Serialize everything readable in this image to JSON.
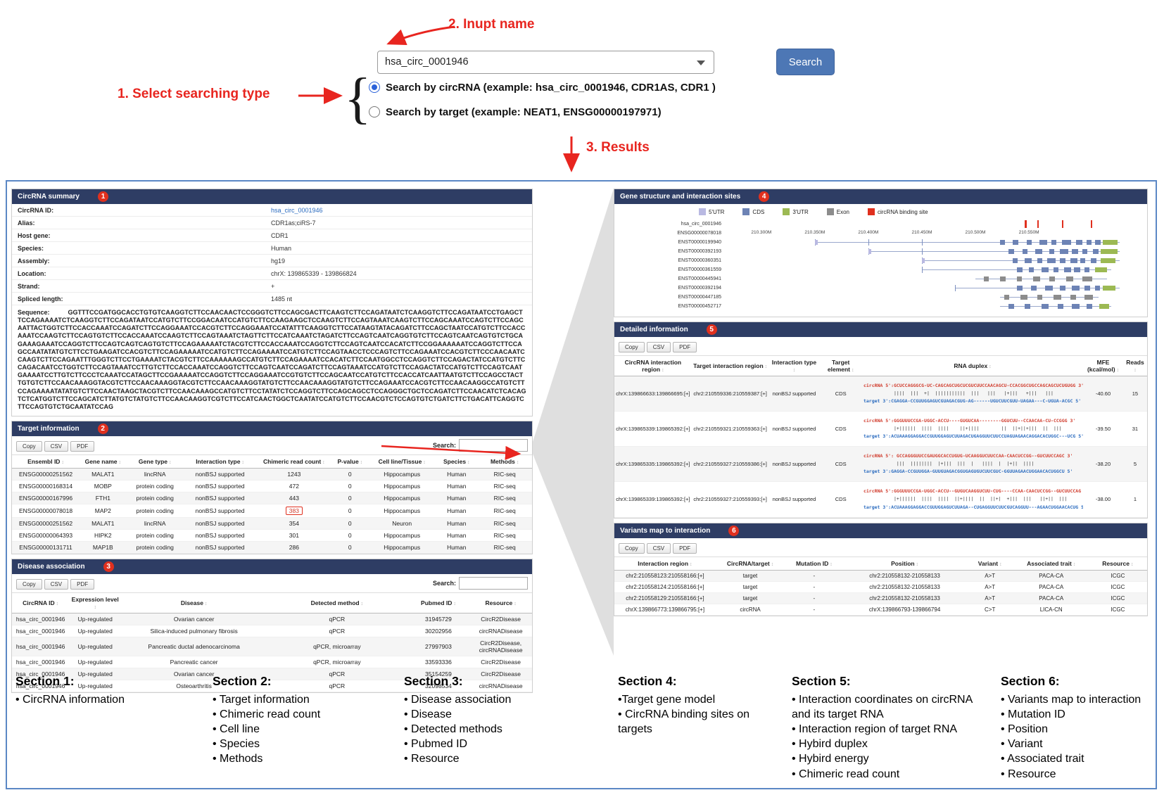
{
  "colors": {
    "header_bar": "#2e3d64",
    "badge": "#e0301e",
    "link": "#2a6bbf",
    "red_text": "#d03a2b",
    "search_button": "#4d77b5",
    "annotation": "#e8251f"
  },
  "annotations": {
    "step1": "1. Select searching type",
    "step2": "2. Inupt name",
    "step3": "3. Results"
  },
  "search": {
    "value": "hsa_circ_0001946",
    "button": "Search",
    "radio_circrna": "Search by circRNA (example: hsa_circ_0001946, CDR1AS, CDR1 )",
    "radio_target": "Search by target (example: NEAT1, ENSG00000197971)"
  },
  "summary": {
    "title": "CircRNA summary",
    "badge": "1",
    "rows": [
      {
        "label": "CircRNA ID:",
        "value": "hsa_circ_0001946",
        "link": true
      },
      {
        "label": "Alias:",
        "value": "CDR1as;ciRS-7"
      },
      {
        "label": "Host gene:",
        "value": "CDR1"
      },
      {
        "label": "Species:",
        "value": "Human"
      },
      {
        "label": "Assembly:",
        "value": "hg19"
      },
      {
        "label": "Location:",
        "value": "chrX: 139865339 - 139866824"
      },
      {
        "label": "Strand:",
        "value": "+"
      },
      {
        "label": "Spliced length:",
        "value": "1485 nt"
      }
    ],
    "sequence_label": "Sequence:",
    "sequence": "GGTTTCCGATGGCACCTGTGTCAAGGTCTTCCAACAACTCCGGGTCTTCCAGCGACTTCAAGTCTTCCAGATAATCTCAAGGTCTTCCAGATAATCCTGAGCTTCCAGAAAATCTCAAGGTCTTCCAGATAATCCATGTCTTCCGGACAATCCATGTCTTCCAAGAAGCTCCAAGTCTTCCAGTAAATCAAGTCTTCCAGCAAATCCAGTCTTCCAGCAATTACTGGTCTTCCACCAAATCCAGATCTTCCAGGAAATCCACGTCTTCCAGGAAATCCATATTTCAAGGTCTTCCATAAGTATACAGATCTTCCAGCTAATCCATGTCTTCCACCAAATCCAAGTCTTCCAGTGTCTTCCACCAAATCCAAGTCTTCCAGTAAATCTAGTTCTTCCATCAAATCTAGATCTTCCAGTCAATCAGGTGTCTTCCAGTCAATCAGTGTCTGCAGAAAGAAATCCAGGTCTTCCAGTCAGTCAGTGTCTTCCAGAAAAATCTACGTCTTCCACCAAATCCAGGTCTTCCAGTCAATCCACATCTTCCGGAAAAAATCCAGGTCTTCCAGCCAATATATGTCTTCCTGAAGATCCACGTCTTCCAGAAAAATCCATGTCTTCCAGAAAATCCATGTCTTCCAGTAACCTCCCAGTCTTCCAGAAATCCACGTCTTCCCAACAATCCAAGTCTTCCAGAATTTGGGTCTTCCTGAAAATCTACGTCTTCCAAAAAAGCCATGTCTTCCAGAAAATCCACATCTTCCAATGGCCTCCAGGTCTTCCAGACTATCCATGTCTTCCAGACAATCCTGGTCTTCCAGTAAATCCTTGTCTTCCACCAAATCCAGGTCTTCCAGTCAATCCAGATCTTCCAGTAAATCCATGTCTTCCAGACTATCCATGTCTTCCAGTCAATGAAAATCCTTGTCTTCCCTCAAATCCATAGCTTCCGAAAAATCCAGGTCTTCCAGGAAATCCGTGTCTTCCAGCAATCCATGTCTTCCACCATCAATTAATGTCTTCCAGCCTACTTGTGTCTTCCAACAAAGGTACGTCTTCCAACAAAGGTACGTCTTCCAACAAAGGTATGTCTTCCAACAAAGGTATGTCTTCCAGAAATCCACGTCTTCCAACAAGGCCATGTCTTCCAGAAAATATATGTCTTCCAACTAAGCTACGTCTTCCAACAAAGCCATGTCTTCCTATATCTCCAGGTCTTCCAGCAGCCTCCAGGGCTGCTCCAGATCTTCCAACATCTCACAGTCTCATGGTCTTCCAGCATCTTATGTCTATGTCTTCCAACAAGGTCGTCTTCCATCAACTGGCTCAATATCCATGTCTTCCAACGTCTCCAGTGTCTGATCTTCTGACATTCAGGTCTTCCAGTGTCTGCAATATCCAG"
  },
  "target_info": {
    "title": "Target information",
    "badge": "2",
    "buttons": [
      "Copy",
      "CSV",
      "PDF"
    ],
    "search_label": "Search:",
    "columns": [
      "Ensembl ID",
      "Gene name",
      "Gene type",
      "Interaction type",
      "Chimeric read count",
      "P-value",
      "Cell line/Tissue",
      "Species",
      "Methods"
    ],
    "rows": [
      [
        {
          "t": "ENSG00000251562",
          "c": "link"
        },
        "MALAT1",
        "lincRNA",
        "nonBSJ supported",
        {
          "t": "1243",
          "c": "red"
        },
        "0",
        "Hippocampus",
        "Human",
        "RIC-seq"
      ],
      [
        {
          "t": "ENSG00000168314",
          "c": "link"
        },
        "MOBP",
        "protein coding",
        "nonBSJ supported",
        {
          "t": "472",
          "c": "red"
        },
        "0",
        "Hippocampus",
        "Human",
        "RIC-seq"
      ],
      [
        {
          "t": "ENSG00000167996",
          "c": "link"
        },
        "FTH1",
        "protein coding",
        "nonBSJ supported",
        {
          "t": "443",
          "c": "red"
        },
        "0",
        "Hippocampus",
        "Human",
        "RIC-seq"
      ],
      [
        {
          "t": "ENSG00000078018",
          "c": "link"
        },
        "MAP2",
        "protein coding",
        "nonBSJ supported",
        {
          "t": "383",
          "c": "red boxed"
        },
        "0",
        "Hippocampus",
        "Human",
        "RIC-seq"
      ],
      [
        {
          "t": "ENSG00000251562",
          "c": "link"
        },
        "MALAT1",
        "lincRNA",
        "nonBSJ supported",
        {
          "t": "354",
          "c": "red"
        },
        "0",
        "Neuron",
        "Human",
        "RIC-seq"
      ],
      [
        {
          "t": "ENSG00000064393",
          "c": "link"
        },
        "HIPK2",
        "protein coding",
        "nonBSJ supported",
        {
          "t": "301",
          "c": "red"
        },
        "0",
        "Hippocampus",
        "Human",
        "RIC-seq"
      ],
      [
        {
          "t": "ENSG00000131711",
          "c": "link"
        },
        "MAP1B",
        "protein coding",
        "nonBSJ supported",
        {
          "t": "286",
          "c": "red"
        },
        "0",
        "Hippocampus",
        "Human",
        "RIC-seq"
      ]
    ]
  },
  "disease": {
    "title": "Disease association",
    "badge": "3",
    "buttons": [
      "Copy",
      "CSV",
      "PDF"
    ],
    "search_label": "Search:",
    "columns": [
      "CircRNA ID",
      "Expression level",
      "Disease",
      "Detected method",
      "Pubmed ID",
      "Resource"
    ],
    "rows": [
      [
        "hsa_circ_0001946",
        "Up-regulated",
        "Ovarian cancer",
        "qPCR",
        {
          "t": "31945729",
          "c": "link"
        },
        "CircR2Disease"
      ],
      [
        "hsa_circ_0001946",
        "Up-regulated",
        "Silica-induced pulmonary fibrosis",
        "qPCR",
        {
          "t": "30202956",
          "c": "link"
        },
        "circRNADisease"
      ],
      [
        "hsa_circ_0001946",
        "Up-regulated",
        "Pancreatic ductal adenocarcinoma",
        "qPCR, microarray",
        {
          "t": "27997903",
          "c": "link"
        },
        "CircR2Disease, circRNADisease"
      ],
      [
        "hsa_circ_0001946",
        "Up-regulated",
        "Pancreatic cancer",
        "qPCR, microarray",
        {
          "t": "33593336",
          "c": "link"
        },
        "CircR2Disease"
      ],
      [
        "hsa_circ_0001946",
        "Up-regulated",
        "Ovarian cancer",
        "qPCR",
        {
          "t": "35154259",
          "c": "link"
        },
        "CircR2Disease"
      ],
      [
        "hsa_circ_0001946",
        "Up-regulated",
        "Osteoarthritis",
        "qPCR",
        {
          "t": "32098534",
          "c": "link"
        },
        "circRNADisease"
      ]
    ]
  },
  "gene_structure": {
    "title": "Gene structure and interaction sites",
    "badge": "4",
    "legend": [
      {
        "key": "utr5",
        "label": "5'UTR",
        "color": "#b9b9e2"
      },
      {
        "key": "cds",
        "label": "CDS",
        "color": "#6d83b5"
      },
      {
        "key": "utr3",
        "label": "3'UTR",
        "color": "#9cb953"
      },
      {
        "key": "exon",
        "label": "Exon",
        "color": "#8c8c8c"
      },
      {
        "key": "bind",
        "label": "circRNA binding site",
        "color": "#e0301e"
      }
    ],
    "axis_ticks": [
      {
        "label": "210.300M",
        "x": 8
      },
      {
        "label": "210.350M",
        "x": 21
      },
      {
        "label": "210.400M",
        "x": 34
      },
      {
        "label": "210.450M",
        "x": 47
      },
      {
        "label": "210.500M",
        "x": 60
      },
      {
        "label": "210.550M",
        "x": 73
      }
    ],
    "tracks": [
      {
        "label": "hsa_circ_0001946",
        "marks": [
          72,
          75,
          81,
          88
        ]
      },
      {
        "label": "ENSG00000078018",
        "type": "axis"
      },
      {
        "label": "ENST00000199940",
        "line": [
          21,
          95
        ],
        "ticks": [
          21,
          34,
          47
        ],
        "exons": [
          [
            21,
            0.7,
            "utr5"
          ],
          [
            66,
            1.2,
            "cds"
          ],
          [
            69,
            1.5,
            "cds"
          ],
          [
            72.5,
            1.2,
            "cds"
          ],
          [
            75.5,
            2,
            "cds"
          ],
          [
            78.5,
            1.2,
            "cds"
          ],
          [
            81,
            2.2,
            "cds"
          ],
          [
            84.5,
            1.5,
            "cds"
          ],
          [
            87,
            1.2,
            "cds"
          ],
          [
            89,
            1.5,
            "cds"
          ],
          [
            91,
            3.5,
            "utr3"
          ]
        ]
      },
      {
        "label": "ENST00000392193",
        "line": [
          34,
          95
        ],
        "ticks": [
          34,
          47
        ],
        "exons": [
          [
            34,
            0.7,
            "utr5"
          ],
          [
            68,
            1.4,
            "cds"
          ],
          [
            71.5,
            1.2,
            "cds"
          ],
          [
            74.5,
            1.8,
            "cds"
          ],
          [
            78,
            1.2,
            "cds"
          ],
          [
            80.5,
            2,
            "cds"
          ],
          [
            83.5,
            1.4,
            "cds"
          ],
          [
            86,
            1.2,
            "cds"
          ],
          [
            88.5,
            1.4,
            "cds"
          ],
          [
            90.5,
            4,
            "utr3"
          ]
        ]
      },
      {
        "label": "ENST00000360351",
        "line": [
          47,
          95
        ],
        "ticks": [
          47
        ],
        "exons": [
          [
            47,
            0.7,
            "utr5"
          ],
          [
            69,
            1.2,
            "cds"
          ],
          [
            72,
            1.6,
            "cds"
          ],
          [
            75,
            1.2,
            "cds"
          ],
          [
            77.5,
            2,
            "cds"
          ],
          [
            80.5,
            1.4,
            "cds"
          ],
          [
            83,
            1.8,
            "cds"
          ],
          [
            85.5,
            1.2,
            "cds"
          ],
          [
            88,
            1.4,
            "cds"
          ],
          [
            90.5,
            3.5,
            "utr3"
          ]
        ]
      },
      {
        "label": "ENST00000361559",
        "line": [
          47,
          93
        ],
        "ticks": [
          47
        ],
        "exons": [
          [
            70,
            1.4,
            "cds"
          ],
          [
            73,
            1.2,
            "cds"
          ],
          [
            76,
            1.8,
            "cds"
          ],
          [
            79,
            1.2,
            "cds"
          ],
          [
            81.5,
            1.8,
            "cds"
          ],
          [
            84,
            1.4,
            "cds"
          ],
          [
            86.5,
            1.2,
            "cds"
          ],
          [
            89,
            3,
            "utr3"
          ]
        ]
      },
      {
        "label": "ENST00000445941",
        "line": [
          60,
          92
        ],
        "exons": [
          [
            62,
            1.2,
            "exon"
          ],
          [
            66,
            1.4,
            "exon"
          ],
          [
            70,
            1.2,
            "exon"
          ],
          [
            74,
            1.8,
            "exon"
          ],
          [
            78,
            1.4,
            "exon"
          ],
          [
            82,
            1.8,
            "exon"
          ],
          [
            86,
            2.4,
            "exon"
          ]
        ]
      },
      {
        "label": "ENST00000392194",
        "line": [
          55,
          95
        ],
        "ticks": [
          55
        ],
        "exons": [
          [
            70,
            1.4,
            "cds"
          ],
          [
            73.5,
            1.4,
            "cds"
          ],
          [
            77,
            1.8,
            "cds"
          ],
          [
            80.5,
            1.4,
            "cds"
          ],
          [
            83.5,
            1.8,
            "cds"
          ],
          [
            86.5,
            1.4,
            "cds"
          ],
          [
            89,
            1.2,
            "cds"
          ],
          [
            91,
            3,
            "utr3"
          ]
        ]
      },
      {
        "label": "ENST00000447185",
        "line": [
          66,
          90
        ],
        "exons": [
          [
            67,
            1.2,
            "exon"
          ],
          [
            71,
            1.6,
            "exon"
          ],
          [
            75,
            1.2,
            "exon"
          ],
          [
            79,
            1.8,
            "exon"
          ],
          [
            83,
            1.4,
            "exon"
          ],
          [
            86.5,
            2,
            "exon"
          ]
        ]
      },
      {
        "label": "ENST00000452717",
        "line": [
          66,
          93
        ],
        "exons": [
          [
            68,
            1.4,
            "cds"
          ],
          [
            72,
            1.4,
            "cds"
          ],
          [
            76,
            1.8,
            "cds"
          ],
          [
            80,
            1.4,
            "cds"
          ],
          [
            83.5,
            1.8,
            "cds"
          ],
          [
            87,
            1.4,
            "cds"
          ],
          [
            90,
            2.5,
            "utr3"
          ]
        ]
      }
    ]
  },
  "detailed": {
    "title": "Detailed information",
    "badge": "5",
    "buttons": [
      "Copy",
      "CSV",
      "PDF"
    ],
    "columns": [
      "CircRNA interaction region",
      "Target interaction region",
      "Interaction type",
      "Target element",
      "RNA duplex",
      "MFE (kcal/mol)",
      "Reads"
    ],
    "rows": [
      [
        "chrX:139866633:139866695:[+]",
        "chr2:210559336:210559387:[+]",
        "nonBSJ supported",
        "CDS",
        {
          "lines": [
            {
              "t": "circRNA 5':GCUCCAGGGCG-UC-CAGCAGCUGCUCGUCUUCCAACAGCU-CCACGGCUGCCAGCAGCUCUGUGG 3'",
              "c": "dx-red"
            },
            {
              "t": "           ||||  |||  +|  |||||||||||  |||   |||   |+|||   +|||   |||",
              "c": "dx-mid"
            },
            {
              "t": "target 3':CGAGGA-CCGUUGGAGUCGUAGACGUG-AG------UGUCUUCGUU-UAGAA---C-UGUA-ACGC 5'",
              "c": "dx-blue"
            }
          ]
        },
        "-40.60",
        "15"
      ],
      [
        "chrX:139865339:139865392:[+]",
        "chr2:210559321:210559363:[+]",
        "nonBSJ supported",
        "CDS",
        {
          "lines": [
            {
              "t": "circRNA 5':GGGUUUCCGA-UGGC-ACCU----GUGUCAA--------GGUCUU--CCAACAA-CU-CCGGG 3'",
              "c": "dx-red"
            },
            {
              "t": "           |+||||||  ||||  ||||    ||+||||        ||  ||+||+|||  ||  |||",
              "c": "dx-mid"
            },
            {
              "t": "target 3':ACUAAAGGAGGACCGUUGGAGUCUUAGACUGAGGUUCUUCCUAGUAGAACAGGACACUGGC---UCG 5'",
              "c": "dx-blue"
            }
          ]
        },
        "-39.50",
        "31"
      ],
      [
        "chrX:139865335:139865392:[+]",
        "chr2:210559327:210559386:[+]",
        "nonBSJ supported",
        "CDS",
        {
          "lines": [
            {
              "t": "circRNA 5': GCCAGGGUUCCGAUGGCACCUGUG-UCAAGGUCUUCCAA-CAACUCCGG--GUCUUCCAGC 3'",
              "c": "dx-red"
            },
            {
              "t": "            |||  ||||||||  |+|||  |||  |   ||||  |  |+||  ||||",
              "c": "dx-mid"
            },
            {
              "t": "target 3':GAGGA-CCGUUGGA-GUUGUAGACGGUGAGUGUCUUCGUC-GGUUAGAACUGGAACACUGGCU 5'",
              "c": "dx-blue"
            }
          ]
        },
        "-38.20",
        "5"
      ],
      [
        "chrX:139865339:139865392:[+]",
        "chr2:210559327:210559393:[+]",
        "nonBSJ supported",
        "CDS",
        {
          "lines": [
            {
              "t": "circRNA 5':GGGUUUCCGA-UGGC-ACCU--GUGUCAAGGUCUU-CUG----CCAA-CAACUCCGG--GUCUUCCAG 3'",
              "c": "dx-red"
            },
            {
              "t": "           |+||||||  ||||  ||||  ||+||||  ||  ||+|  +|||  |||   ||+||  |||",
              "c": "dx-mid"
            },
            {
              "t": "target 3':ACUAAAGGAGGACCGUUGGAGUCUUAGA--CUGAGGUUCUUCGUCAGGUU---AGAACUGGAACACUG 5'",
              "c": "dx-blue"
            }
          ]
        },
        "-38.00",
        "1"
      ]
    ]
  },
  "variants": {
    "title": "Variants map to interaction",
    "badge": "6",
    "buttons": [
      "Copy",
      "CSV",
      "PDF"
    ],
    "columns": [
      "Interaction region",
      "CircRNA/target",
      "Mutation ID",
      "Position",
      "Variant",
      "Associated trait",
      "Resource"
    ],
    "rows": [
      [
        "chr2:210558123:210558166:[+]",
        "target",
        "-",
        "chr2:210558132-210558133",
        "A>T",
        "PACA-CA",
        "ICGC"
      ],
      [
        "chr2:210558124:210558166:[+]",
        "target",
        "-",
        "chr2:210558132-210558133",
        "A>T",
        "PACA-CA",
        "ICGC"
      ],
      [
        "chr2:210558129:210558166:[+]",
        "target",
        "-",
        "chr2:210558132-210558133",
        "A>T",
        "PACA-CA",
        "ICGC"
      ],
      [
        "chrX:139866773:139866795:[+]",
        "circRNA",
        "-",
        "chrX:139866793-139866794",
        "C>T",
        "LICA-CN",
        "ICGC"
      ]
    ]
  },
  "sections": [
    {
      "title": "Section 1:",
      "items": [
        "• CircRNA information"
      ]
    },
    {
      "title": "Section 2:",
      "items": [
        "• Target information",
        "• Chimeric read count",
        "• Cell line",
        "• Species",
        "• Methods"
      ]
    },
    {
      "title": "Section 3:",
      "items": [
        "• Disease association",
        "• Disease",
        "• Detected methods",
        "• Pubmed ID",
        "• Resource"
      ]
    },
    {
      "title": "Section 4:",
      "items": [
        "•Target gene model",
        "• CircRNA binding sites on targets"
      ]
    },
    {
      "title": "Section 5:",
      "items": [
        "• Interaction coordinates on circRNA and its target RNA",
        "• Interaction region of target RNA",
        "• Hybird duplex",
        "• Hybird energy",
        "• Chimeric read count"
      ]
    },
    {
      "title": "Section 6:",
      "items": [
        "• Variants map to interaction",
        "• Mutation ID",
        "• Position",
        "• Variant",
        "• Associated trait",
        "• Resource"
      ]
    }
  ]
}
